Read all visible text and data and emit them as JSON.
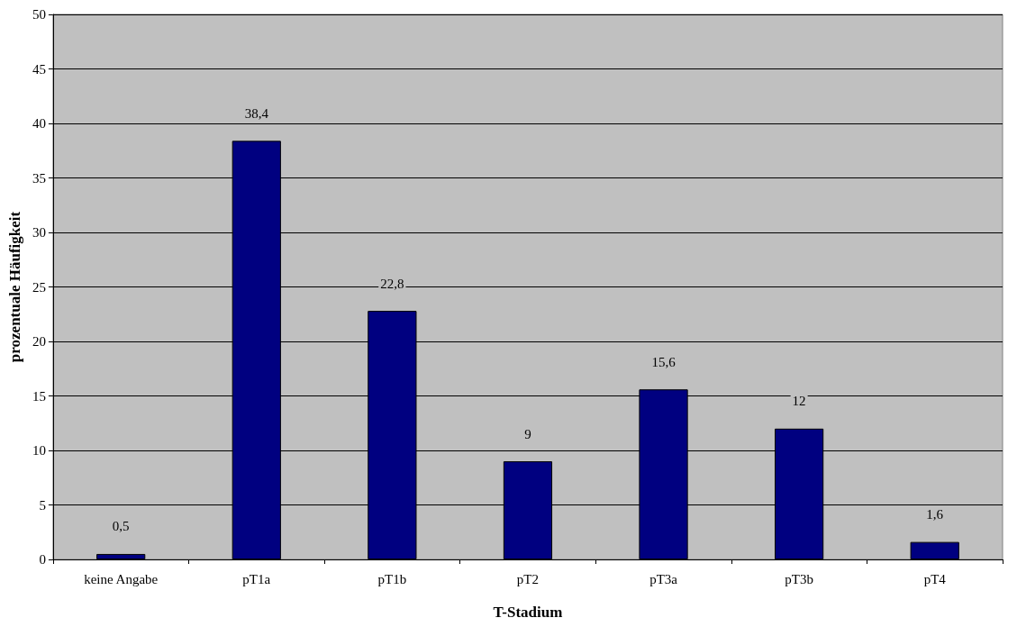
{
  "chart_data": {
    "type": "bar",
    "xlabel": "T-Stadium",
    "ylabel": "prozentuale Häufigkeit",
    "categories": [
      "keine Angabe",
      "pT1a",
      "pT1b",
      "pT2",
      "pT3a",
      "pT3b",
      "pT4"
    ],
    "values": [
      0.5,
      38.4,
      22.8,
      9,
      15.6,
      12,
      1.6
    ],
    "value_labels": [
      "0,5",
      "38,4",
      "22,8",
      "9",
      "15,6",
      "12",
      "1,6"
    ],
    "color": "#000080",
    "ylim": [
      0,
      50
    ],
    "yticks": [
      0,
      5,
      10,
      15,
      20,
      25,
      30,
      35,
      40,
      45,
      50
    ],
    "grid": "y"
  }
}
